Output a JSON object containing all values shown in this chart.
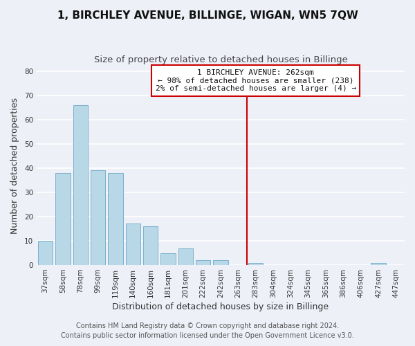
{
  "title": "1, BIRCHLEY AVENUE, BILLINGE, WIGAN, WN5 7QW",
  "subtitle": "Size of property relative to detached houses in Billinge",
  "xlabel": "Distribution of detached houses by size in Billinge",
  "ylabel": "Number of detached properties",
  "bar_labels": [
    "37sqm",
    "58sqm",
    "78sqm",
    "99sqm",
    "119sqm",
    "140sqm",
    "160sqm",
    "181sqm",
    "201sqm",
    "222sqm",
    "242sqm",
    "263sqm",
    "283sqm",
    "304sqm",
    "324sqm",
    "345sqm",
    "365sqm",
    "386sqm",
    "406sqm",
    "427sqm",
    "447sqm"
  ],
  "bar_values": [
    10,
    38,
    66,
    39,
    38,
    17,
    16,
    5,
    7,
    2,
    2,
    0,
    1,
    0,
    0,
    0,
    0,
    0,
    0,
    1,
    0
  ],
  "bar_color": "#b8d8e8",
  "bar_edge_color": "#7ab0cc",
  "vline_x": 11.5,
  "vline_color": "#cc0000",
  "annotation_title": "1 BIRCHLEY AVENUE: 262sqm",
  "annotation_line1": "← 98% of detached houses are smaller (238)",
  "annotation_line2": "2% of semi-detached houses are larger (4) →",
  "annotation_box_facecolor": "white",
  "annotation_box_edgecolor": "#cc0000",
  "ylim": [
    0,
    82
  ],
  "yticks": [
    0,
    10,
    20,
    30,
    40,
    50,
    60,
    70,
    80
  ],
  "footer_line1": "Contains HM Land Registry data © Crown copyright and database right 2024.",
  "footer_line2": "Contains public sector information licensed under the Open Government Licence v3.0.",
  "background_color": "#eef0f8",
  "grid_color": "white",
  "title_fontsize": 11,
  "subtitle_fontsize": 9.5,
  "tick_fontsize": 7.5,
  "label_fontsize": 9,
  "footer_fontsize": 7,
  "ann_fontsize": 8
}
